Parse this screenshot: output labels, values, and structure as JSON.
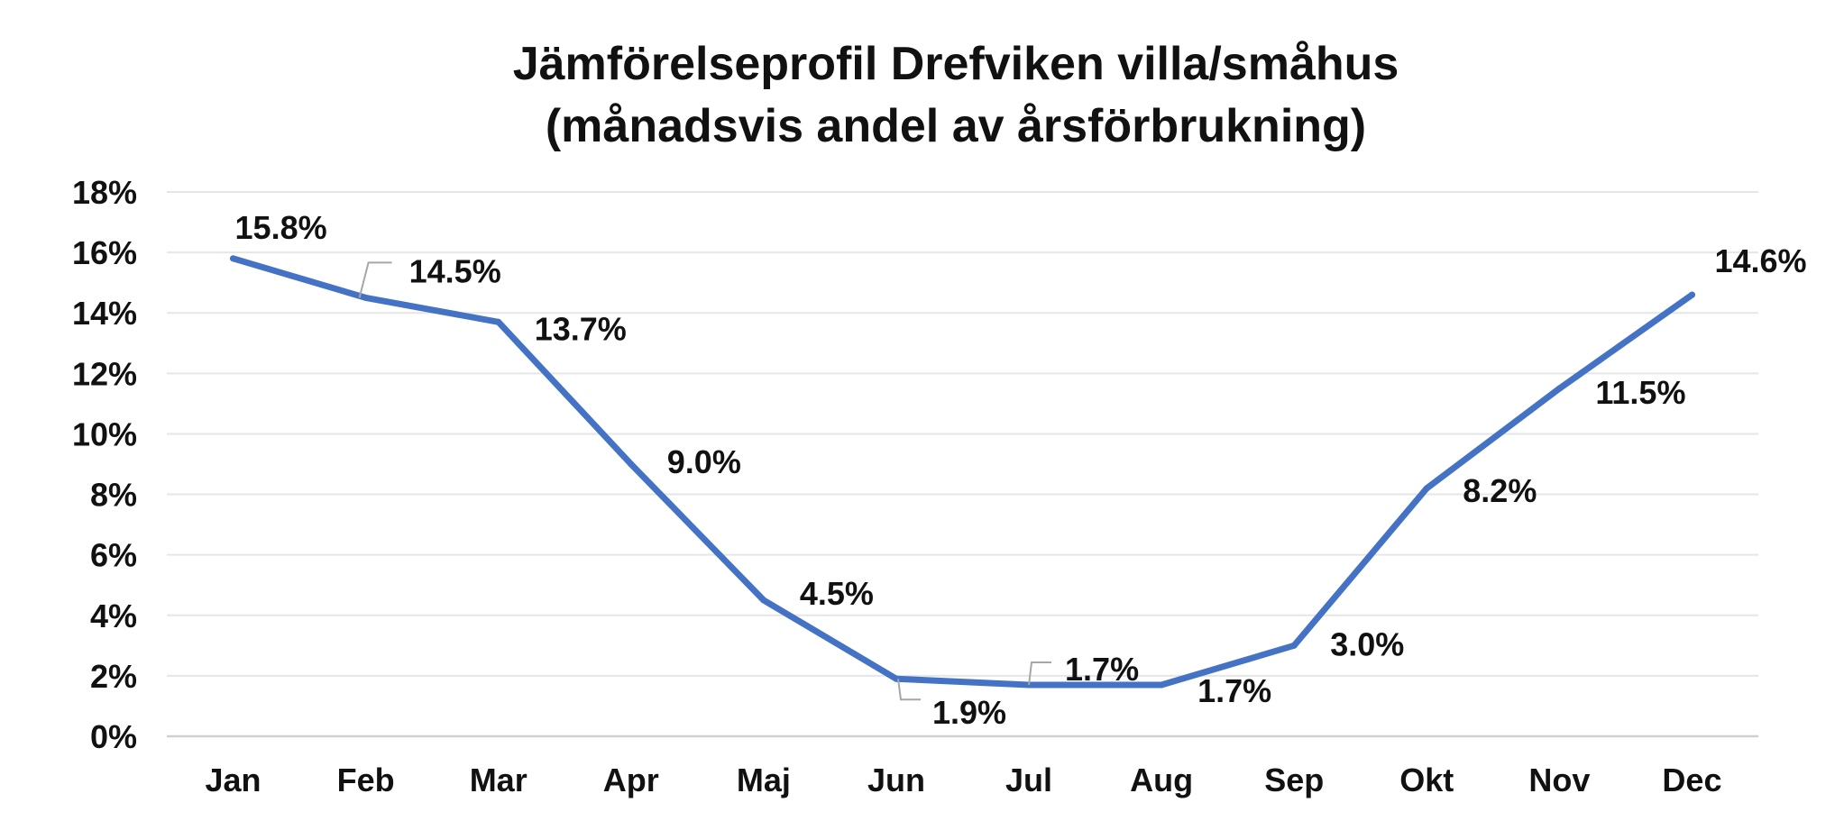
{
  "chart_data": {
    "type": "line",
    "title": [
      "Jämförelseprofil Drefviken villa/småhus",
      "(månadsvis andel av årsförbrukning)"
    ],
    "categories": [
      "Jan",
      "Feb",
      "Mar",
      "Apr",
      "Maj",
      "Jun",
      "Jul",
      "Aug",
      "Sep",
      "Okt",
      "Nov",
      "Dec"
    ],
    "values": [
      15.8,
      14.5,
      13.7,
      9.0,
      4.5,
      1.9,
      1.7,
      1.7,
      3.0,
      8.2,
      11.5,
      14.6
    ],
    "data_labels": [
      "15.8%",
      "14.5%",
      "13.7%",
      "9.0%",
      "4.5%",
      "1.9%",
      "1.7%",
      "1.7%",
      "3.0%",
      "8.2%",
      "11.5%",
      "14.6%"
    ],
    "ylim": [
      0,
      18
    ],
    "yticks": [
      "0%",
      "2%",
      "4%",
      "6%",
      "8%",
      "10%",
      "12%",
      "14%",
      "16%",
      "18%"
    ],
    "grid": true,
    "legend": "none",
    "colors": {
      "series": "#4472C4"
    }
  }
}
